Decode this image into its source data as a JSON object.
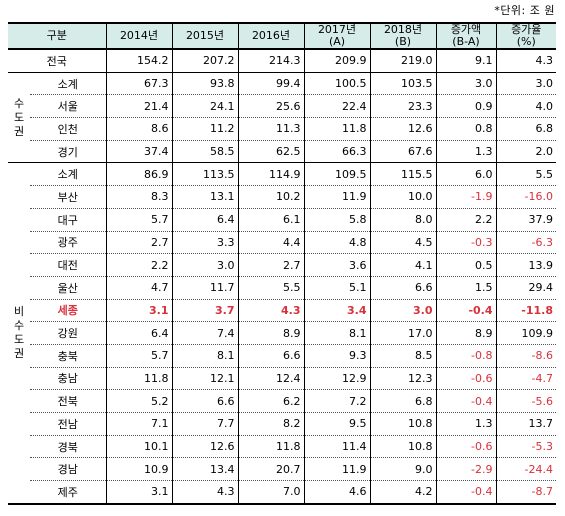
{
  "unit_note": "*단위: 조 원",
  "headers": [
    "구분",
    "2014년",
    "2015년",
    "2016년",
    "2017년\n(A)",
    "2018년\n(B)",
    "증가액\n(B-A)",
    "증가율\n(%)"
  ],
  "total": {
    "label": "전국",
    "values": [
      "154.2",
      "207.2",
      "214.3",
      "209.9",
      "219.0",
      "9.1",
      "4.3"
    ]
  },
  "capital": {
    "group": "수도권",
    "rows": [
      {
        "label": "소계",
        "values": [
          "67.3",
          "93.8",
          "99.4",
          "100.5",
          "103.5",
          "3.0",
          "3.0"
        ]
      },
      {
        "label": "서울",
        "values": [
          "21.4",
          "24.1",
          "25.6",
          "22.4",
          "23.3",
          "0.9",
          "4.0"
        ]
      },
      {
        "label": "인천",
        "values": [
          "8.6",
          "11.2",
          "11.3",
          "11.8",
          "12.6",
          "0.8",
          "6.8"
        ]
      },
      {
        "label": "경기",
        "values": [
          "37.4",
          "58.5",
          "62.5",
          "66.3",
          "67.6",
          "1.3",
          "2.0"
        ]
      }
    ]
  },
  "noncapital": {
    "group": "비수도권",
    "rows": [
      {
        "label": "소계",
        "values": [
          "86.9",
          "113.5",
          "114.9",
          "109.5",
          "115.5",
          "6.0",
          "5.5"
        ]
      },
      {
        "label": "부산",
        "values": [
          "8.3",
          "13.1",
          "10.2",
          "11.9",
          "10.0",
          "-1.9",
          "-16.0"
        ]
      },
      {
        "label": "대구",
        "values": [
          "5.7",
          "6.4",
          "6.1",
          "5.8",
          "8.0",
          "2.2",
          "37.9"
        ]
      },
      {
        "label": "광주",
        "values": [
          "2.7",
          "3.3",
          "4.4",
          "4.8",
          "4.5",
          "-0.3",
          "-6.3"
        ]
      },
      {
        "label": "대전",
        "values": [
          "2.2",
          "3.0",
          "2.7",
          "3.6",
          "4.1",
          "0.5",
          "13.9"
        ]
      },
      {
        "label": "울산",
        "values": [
          "4.7",
          "11.7",
          "5.5",
          "5.1",
          "6.6",
          "1.5",
          "29.4"
        ]
      },
      {
        "label": "세종",
        "values": [
          "3.1",
          "3.7",
          "4.3",
          "3.4",
          "3.0",
          "-0.4",
          "-11.8"
        ],
        "highlight": true
      },
      {
        "label": "강원",
        "values": [
          "6.4",
          "7.4",
          "8.9",
          "8.1",
          "17.0",
          "8.9",
          "109.9"
        ]
      },
      {
        "label": "충북",
        "values": [
          "5.7",
          "8.1",
          "6.6",
          "9.3",
          "8.5",
          "-0.8",
          "-8.6"
        ]
      },
      {
        "label": "충남",
        "values": [
          "11.8",
          "12.1",
          "12.4",
          "12.9",
          "12.3",
          "-0.6",
          "-4.7"
        ]
      },
      {
        "label": "전북",
        "values": [
          "5.2",
          "6.6",
          "6.2",
          "7.2",
          "6.8",
          "-0.4",
          "-5.6"
        ]
      },
      {
        "label": "전남",
        "values": [
          "7.1",
          "7.7",
          "8.2",
          "9.5",
          "10.8",
          "1.3",
          "13.7"
        ]
      },
      {
        "label": "경북",
        "values": [
          "10.1",
          "12.6",
          "11.8",
          "11.4",
          "10.8",
          "-0.6",
          "-5.3"
        ]
      },
      {
        "label": "경남",
        "values": [
          "10.9",
          "13.4",
          "20.7",
          "11.9",
          "9.0",
          "-2.9",
          "-24.4"
        ]
      },
      {
        "label": "제주",
        "values": [
          "3.1",
          "4.3",
          "7.0",
          "4.6",
          "4.2",
          "-0.4",
          "-8.7"
        ]
      }
    ]
  },
  "colors": {
    "header_bg": "#d6ece9",
    "negative": "#d8313b",
    "highlight": "#d8313b"
  }
}
